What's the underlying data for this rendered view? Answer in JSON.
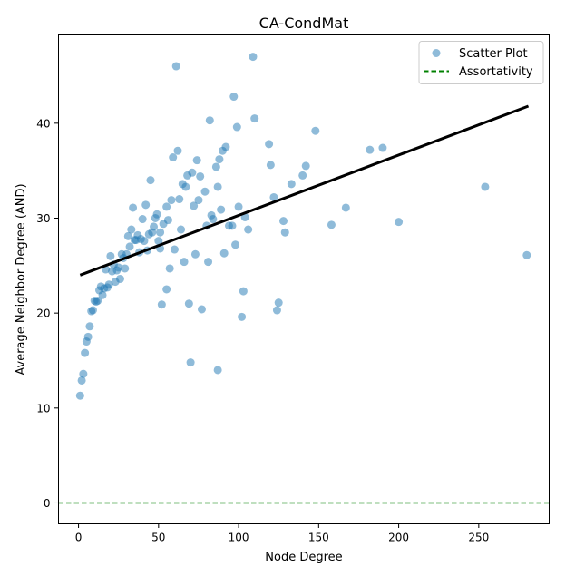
{
  "chart_data": {
    "type": "scatter",
    "title": "CA-CondMat",
    "xlabel": "Node Degree",
    "ylabel": "Average Neighbor Degree (AND)",
    "xlim": [
      -12.5,
      294
    ],
    "ylim": [
      -2.2,
      49.3
    ],
    "xticks": [
      0,
      50,
      100,
      150,
      200,
      250
    ],
    "yticks": [
      0,
      10,
      20,
      30,
      40
    ],
    "grid": false,
    "legend_position": "top-right",
    "colors": {
      "scatter": "#1f77b4",
      "fit_line": "#000000",
      "assortativity": "#008000"
    },
    "series": [
      {
        "name": "Scatter Plot",
        "kind": "scatter",
        "points": [
          [
            1,
            11.3
          ],
          [
            2,
            12.9
          ],
          [
            3,
            13.6
          ],
          [
            4,
            15.8
          ],
          [
            5,
            17.0
          ],
          [
            6,
            17.5
          ],
          [
            7,
            18.6
          ],
          [
            8,
            20.2
          ],
          [
            9,
            20.3
          ],
          [
            10,
            21.3
          ],
          [
            11,
            21.2
          ],
          [
            12,
            21.3
          ],
          [
            13,
            22.4
          ],
          [
            14,
            22.8
          ],
          [
            15,
            21.9
          ],
          [
            16,
            22.6
          ],
          [
            17,
            24.6
          ],
          [
            18,
            22.7
          ],
          [
            19,
            23.0
          ],
          [
            20,
            26.0
          ],
          [
            21,
            24.4
          ],
          [
            22,
            25.1
          ],
          [
            23,
            23.3
          ],
          [
            24,
            24.5
          ],
          [
            25,
            24.8
          ],
          [
            26,
            23.6
          ],
          [
            27,
            26.2
          ],
          [
            28,
            25.8
          ],
          [
            29,
            24.7
          ],
          [
            30,
            26.2
          ],
          [
            31,
            28.1
          ],
          [
            32,
            27.0
          ],
          [
            33,
            28.8
          ],
          [
            34,
            31.1
          ],
          [
            35,
            27.7
          ],
          [
            36,
            27.7
          ],
          [
            37,
            28.2
          ],
          [
            38,
            26.4
          ],
          [
            39,
            27.8
          ],
          [
            40,
            29.9
          ],
          [
            41,
            27.6
          ],
          [
            42,
            31.4
          ],
          [
            43,
            26.6
          ],
          [
            44,
            28.3
          ],
          [
            45,
            34.0
          ],
          [
            46,
            28.5
          ],
          [
            47,
            29.1
          ],
          [
            48,
            30.0
          ],
          [
            49,
            30.4
          ],
          [
            50,
            27.6
          ],
          [
            51,
            26.8
          ],
          [
            51,
            28.5
          ],
          [
            52,
            20.9
          ],
          [
            53,
            29.4
          ],
          [
            55,
            31.2
          ],
          [
            55,
            22.5
          ],
          [
            56,
            29.8
          ],
          [
            57,
            24.7
          ],
          [
            58,
            31.9
          ],
          [
            59,
            36.4
          ],
          [
            60,
            26.7
          ],
          [
            61,
            46.0
          ],
          [
            62,
            37.1
          ],
          [
            63,
            32.0
          ],
          [
            64,
            28.8
          ],
          [
            65,
            33.6
          ],
          [
            66,
            25.4
          ],
          [
            67,
            33.3
          ],
          [
            68,
            34.5
          ],
          [
            69,
            21.0
          ],
          [
            70,
            14.8
          ],
          [
            71,
            34.8
          ],
          [
            72,
            31.3
          ],
          [
            73,
            26.2
          ],
          [
            74,
            36.1
          ],
          [
            75,
            31.9
          ],
          [
            76,
            34.4
          ],
          [
            77,
            20.4
          ],
          [
            79,
            32.8
          ],
          [
            80,
            29.2
          ],
          [
            81,
            25.4
          ],
          [
            82,
            40.3
          ],
          [
            83,
            30.3
          ],
          [
            84,
            29.9
          ],
          [
            86,
            35.4
          ],
          [
            87,
            33.3
          ],
          [
            87,
            14.0
          ],
          [
            88,
            36.2
          ],
          [
            89,
            30.9
          ],
          [
            90,
            37.1
          ],
          [
            91,
            26.3
          ],
          [
            92,
            37.5
          ],
          [
            94,
            29.2
          ],
          [
            96,
            29.2
          ],
          [
            97,
            42.8
          ],
          [
            98,
            27.2
          ],
          [
            99,
            39.6
          ],
          [
            100,
            31.2
          ],
          [
            102,
            19.6
          ],
          [
            103,
            22.3
          ],
          [
            104,
            30.1
          ],
          [
            106,
            28.8
          ],
          [
            109,
            47.0
          ],
          [
            110,
            40.5
          ],
          [
            119,
            37.8
          ],
          [
            120,
            35.6
          ],
          [
            122,
            32.2
          ],
          [
            124,
            20.3
          ],
          [
            125,
            21.1
          ],
          [
            128,
            29.7
          ],
          [
            129,
            28.5
          ],
          [
            133,
            33.6
          ],
          [
            140,
            34.5
          ],
          [
            142,
            35.5
          ],
          [
            148,
            39.2
          ],
          [
            158,
            29.3
          ],
          [
            167,
            31.1
          ],
          [
            182,
            37.2
          ],
          [
            190,
            37.4
          ],
          [
            200,
            29.6
          ],
          [
            254,
            33.3
          ],
          [
            280,
            26.1
          ]
        ]
      },
      {
        "name": "",
        "kind": "line",
        "points": [
          [
            1,
            24.0
          ],
          [
            281,
            41.8
          ]
        ]
      },
      {
        "name": "Assortativity",
        "kind": "hline",
        "y": 0
      }
    ]
  }
}
